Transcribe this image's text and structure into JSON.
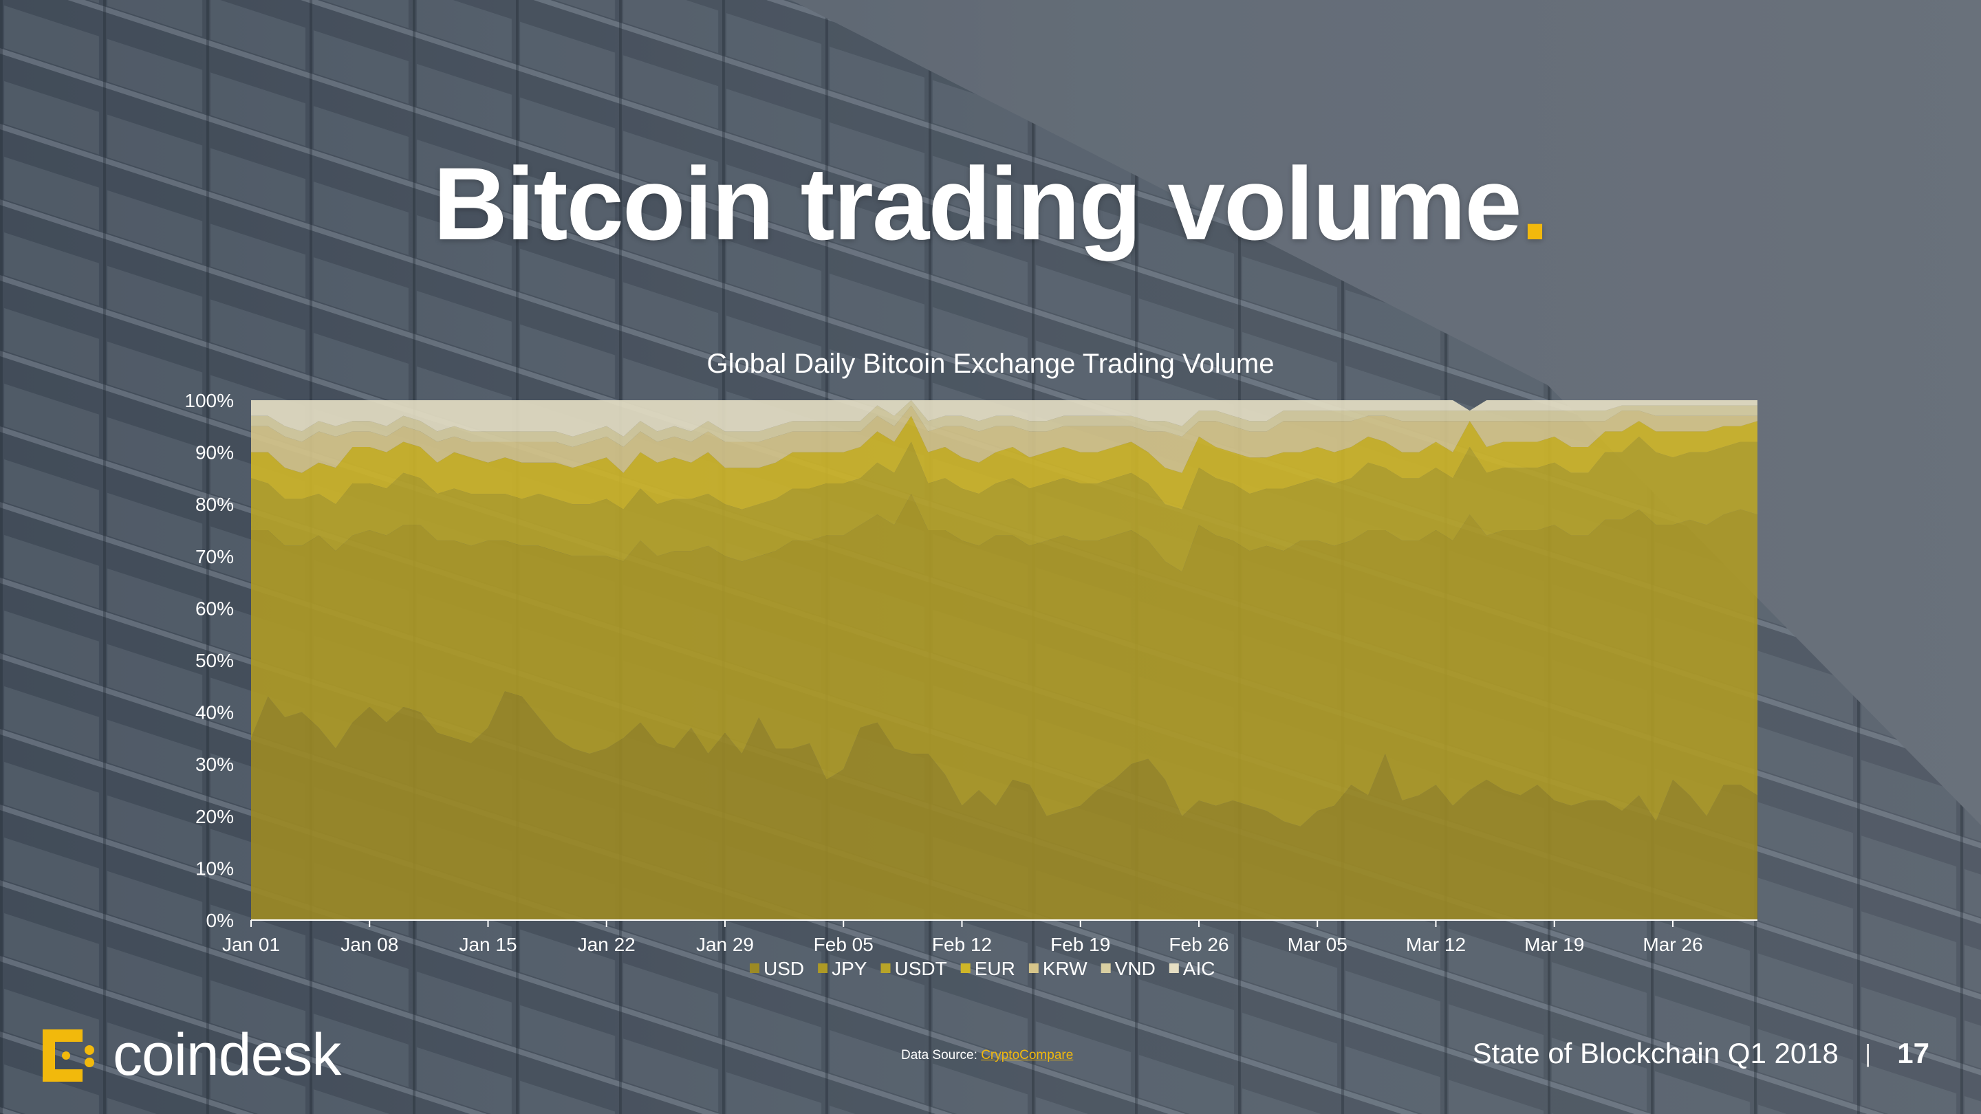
{
  "slide": {
    "title": "Bitcoin trading volume",
    "title_dot": ".",
    "accent_color": "#f2b90c",
    "data_source_label": "Data Source:",
    "data_source_link": "CryptoCompare",
    "logo_text": "coindesk",
    "report_name": "State of Blockchain Q1 2018",
    "separator": "|",
    "page_number": "17"
  },
  "chart_data": {
    "type": "area",
    "stacked": true,
    "percent": true,
    "title": "Global Daily Bitcoin Exchange Trading Volume",
    "xlabel": "",
    "ylabel": "",
    "ylim": [
      0,
      100
    ],
    "y_ticks": [
      "0%",
      "10%",
      "20%",
      "30%",
      "40%",
      "50%",
      "60%",
      "70%",
      "80%",
      "90%",
      "100%"
    ],
    "x_ticks": [
      "Jan 01",
      "Jan 08",
      "Jan 15",
      "Jan 22",
      "Jan 29",
      "Feb 05",
      "Feb 12",
      "Feb 19",
      "Feb 26",
      "Mar 05",
      "Mar 12",
      "Mar 19",
      "Mar 26"
    ],
    "x_start": "Jan 01",
    "x_end": "Mar 31",
    "legend_position": "bottom",
    "grid": false,
    "colors": {
      "USD": "#9c8a24",
      "JPY": "#ae9a25",
      "USDT": "#b8a428",
      "EUR": "#cfb628",
      "KRW": "#d6c58a",
      "VND": "#d9cfa2",
      "AIC": "#e6dfc4"
    },
    "series": [
      {
        "name": "USD",
        "values": [
          35,
          43,
          39,
          40,
          37,
          33,
          38,
          41,
          38,
          41,
          40,
          36,
          35,
          34,
          37,
          44,
          43,
          39,
          35,
          33,
          32,
          33,
          35,
          38,
          34,
          33,
          37,
          32,
          36,
          32,
          39,
          33,
          33,
          34,
          27,
          29,
          37,
          38,
          33,
          32,
          32,
          28,
          22,
          25,
          22,
          27,
          26,
          20,
          21,
          22,
          25,
          27,
          30,
          31,
          27,
          20,
          23,
          22,
          23,
          22,
          21,
          19,
          18,
          21,
          22,
          26,
          24,
          32,
          23,
          24,
          26,
          22,
          25,
          27,
          25,
          24,
          26,
          23,
          22,
          23,
          23,
          21,
          24,
          19,
          27,
          24,
          20,
          26,
          26,
          24
        ]
      },
      {
        "name": "JPY",
        "values": [
          40,
          32,
          33,
          32,
          37,
          38,
          36,
          34,
          36,
          35,
          36,
          37,
          38,
          38,
          36,
          29,
          29,
          33,
          36,
          37,
          38,
          37,
          34,
          35,
          36,
          38,
          34,
          40,
          34,
          37,
          31,
          38,
          40,
          39,
          47,
          45,
          39,
          40,
          43,
          50,
          43,
          47,
          51,
          47,
          52,
          47,
          46,
          53,
          53,
          51,
          48,
          47,
          45,
          42,
          42,
          47,
          53,
          52,
          50,
          49,
          51,
          52,
          55,
          52,
          50,
          47,
          51,
          43,
          50,
          49,
          49,
          51,
          53,
          47,
          50,
          51,
          49,
          53,
          52,
          51,
          54,
          56,
          55,
          57,
          49,
          53,
          56,
          52,
          53,
          54
        ]
      },
      {
        "name": "USDT",
        "values": [
          10,
          9,
          9,
          9,
          8,
          9,
          10,
          9,
          9,
          10,
          9,
          9,
          10,
          10,
          9,
          9,
          9,
          10,
          10,
          10,
          10,
          11,
          10,
          10,
          10,
          10,
          10,
          10,
          10,
          10,
          10,
          10,
          10,
          10,
          10,
          10,
          9,
          10,
          10,
          10,
          9,
          10,
          10,
          10,
          10,
          11,
          11,
          11,
          11,
          11,
          11,
          11,
          11,
          11,
          11,
          12,
          11,
          11,
          11,
          11,
          11,
          12,
          11,
          12,
          12,
          12,
          13,
          12,
          12,
          12,
          12,
          12,
          13,
          12,
          12,
          12,
          12,
          12,
          12,
          12,
          13,
          13,
          14,
          14,
          13,
          13,
          14,
          13,
          13,
          14
        ]
      },
      {
        "name": "EUR",
        "values": [
          5,
          6,
          6,
          5,
          6,
          7,
          7,
          7,
          7,
          6,
          6,
          6,
          7,
          7,
          6,
          7,
          7,
          6,
          7,
          7,
          8,
          8,
          7,
          7,
          8,
          8,
          7,
          8,
          7,
          8,
          7,
          7,
          7,
          7,
          6,
          6,
          6,
          6,
          6,
          5,
          6,
          6,
          6,
          6,
          6,
          6,
          6,
          6,
          6,
          6,
          6,
          6,
          6,
          6,
          7,
          7,
          6,
          6,
          6,
          7,
          6,
          7,
          6,
          6,
          6,
          6,
          5,
          5,
          5,
          5,
          5,
          5,
          5,
          5,
          5,
          5,
          5,
          5,
          5,
          5,
          4,
          4,
          3,
          4,
          5,
          4,
          4,
          4,
          3,
          4
        ]
      },
      {
        "name": "KRW",
        "values": [
          5,
          5,
          6,
          6,
          6,
          6,
          3,
          3,
          3,
          3,
          3,
          4,
          3,
          3,
          4,
          3,
          4,
          4,
          4,
          4,
          4,
          4,
          5,
          4,
          4,
          4,
          4,
          4,
          5,
          5,
          5,
          5,
          4,
          4,
          4,
          4,
          3,
          3,
          3,
          2,
          4,
          4,
          6,
          6,
          5,
          4,
          5,
          4,
          4,
          5,
          5,
          4,
          3,
          4,
          7,
          7,
          3,
          5,
          5,
          5,
          5,
          6,
          6,
          5,
          6,
          5,
          4,
          5,
          6,
          6,
          4,
          6,
          0,
          5,
          4,
          4,
          4,
          3,
          5,
          5,
          2,
          4,
          2,
          3,
          3,
          3,
          3,
          2,
          2,
          1
        ]
      },
      {
        "name": "VND",
        "values": [
          2,
          2,
          2,
          2,
          2,
          2,
          2,
          2,
          2,
          2,
          2,
          2,
          2,
          2,
          2,
          2,
          2,
          2,
          2,
          2,
          2,
          2,
          2,
          2,
          2,
          2,
          2,
          2,
          2,
          2,
          2,
          2,
          2,
          2,
          2,
          2,
          2,
          2,
          2,
          2,
          2,
          2,
          2,
          2,
          2,
          2,
          2,
          2,
          2,
          2,
          2,
          2,
          2,
          2,
          2,
          2,
          2,
          2,
          2,
          2,
          2,
          2,
          2,
          2,
          2,
          2,
          1,
          1,
          2,
          2,
          2,
          2,
          2,
          2,
          2,
          2,
          2,
          2,
          2,
          2,
          2,
          1,
          1,
          2,
          2,
          2,
          2,
          2,
          2,
          2
        ]
      },
      {
        "name": "AIC",
        "values": [
          3,
          3,
          5,
          6,
          4,
          5,
          4,
          4,
          5,
          3,
          4,
          6,
          5,
          6,
          6,
          6,
          6,
          6,
          6,
          7,
          6,
          5,
          7,
          4,
          6,
          5,
          6,
          4,
          6,
          6,
          6,
          5,
          4,
          4,
          4,
          4,
          4,
          1,
          3,
          1,
          4,
          3,
          3,
          4,
          3,
          3,
          4,
          4,
          3,
          3,
          3,
          3,
          3,
          4,
          4,
          5,
          2,
          2,
          3,
          4,
          4,
          2,
          2,
          2,
          2,
          2,
          2,
          2,
          2,
          2,
          2,
          2,
          0,
          2,
          2,
          2,
          2,
          2,
          2,
          2,
          2,
          1,
          1,
          1,
          1,
          1,
          1,
          1,
          1,
          1
        ]
      }
    ]
  }
}
